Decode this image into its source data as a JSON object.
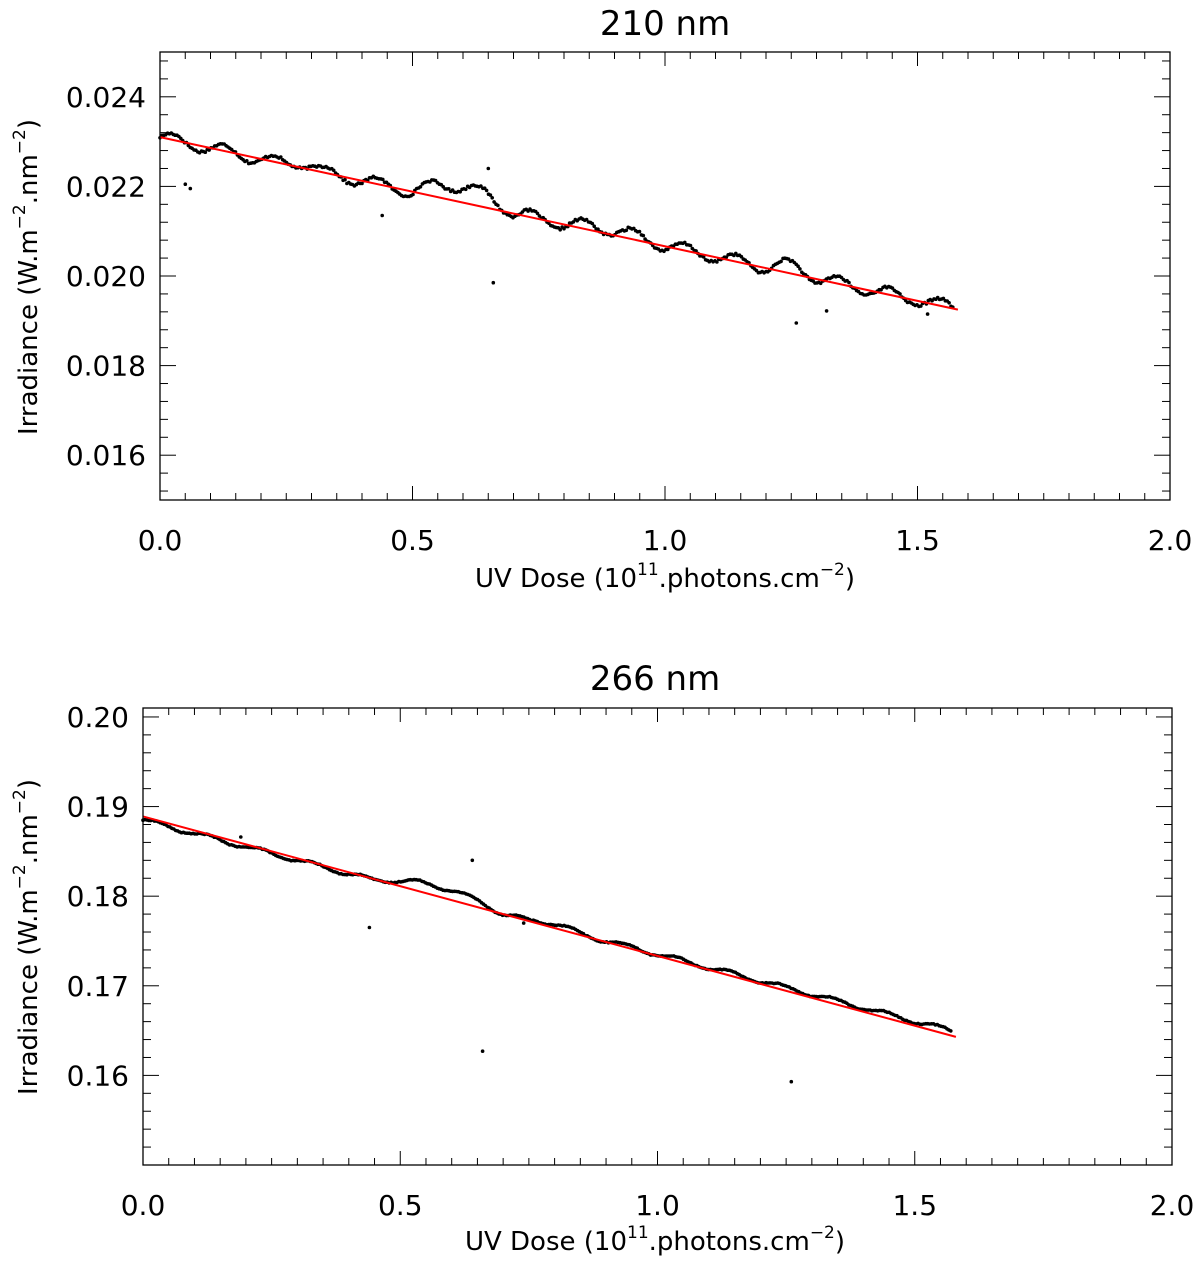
{
  "chart_data": [
    {
      "type": "scatter",
      "title": "210 nm",
      "xlabel": {
        "pre": "UV Dose (10",
        "sup1": "11",
        "mid": ".photons.cm",
        "sup2": "−2",
        "post": ")"
      },
      "ylabel": {
        "pre": "Irradiance (W.m",
        "sup1": "−2",
        "mid": ".nm",
        "sup2": "−2",
        "post": ")"
      },
      "xlim": [
        0.0,
        2.0
      ],
      "ylim": [
        0.015,
        0.025
      ],
      "xticks": [
        0.0,
        0.5,
        1.0,
        1.5,
        2.0
      ],
      "xtick_labels": [
        "0.0",
        "0.5",
        "1.0",
        "1.5",
        "2.0"
      ],
      "yticks": [
        0.016,
        0.018,
        0.02,
        0.022,
        0.024
      ],
      "ytick_labels": [
        "0.016",
        "0.018",
        "0.020",
        "0.022",
        "0.024"
      ],
      "grid": false,
      "series": [
        {
          "kind": "points",
          "color": "#000000",
          "trend": {
            "x": [
              0.0,
              1.57
            ],
            "y": [
              0.0231,
              0.0193
            ]
          },
          "wiggle": 0.00014,
          "bumps": [
            [
              0.25,
              0.32,
              0.00012
            ],
            [
              0.5,
              0.7,
              0.00035
            ],
            [
              0.8,
              1.0,
              0.0001
            ],
            [
              1.2,
              1.3,
              0.00015
            ]
          ],
          "outliers": [
            [
              0.05,
              0.02205
            ],
            [
              0.06,
              0.02195
            ],
            [
              0.44,
              0.02135
            ],
            [
              0.65,
              0.0224
            ],
            [
              0.66,
              0.01985
            ],
            [
              1.26,
              0.01895
            ],
            [
              1.32,
              0.01922
            ],
            [
              1.52,
              0.01915
            ]
          ]
        },
        {
          "kind": "line",
          "color": "#ff0000",
          "x": [
            0.0,
            1.58
          ],
          "y": [
            0.0231,
            0.01925
          ]
        }
      ]
    },
    {
      "type": "scatter",
      "title": "266 nm",
      "xlabel": {
        "pre": "UV Dose (10",
        "sup1": "11",
        "mid": ".photons.cm",
        "sup2": "−2",
        "post": ")"
      },
      "ylabel": {
        "pre": "Irradiance (W.m",
        "sup1": "−2",
        "mid": ".nm",
        "sup2": "−2",
        "post": ")"
      },
      "xlim": [
        0.0,
        2.0
      ],
      "ylim": [
        0.15,
        0.201
      ],
      "xticks": [
        0.0,
        0.5,
        1.0,
        1.5,
        2.0
      ],
      "xtick_labels": [
        "0.0",
        "0.5",
        "1.0",
        "1.5",
        "2.0"
      ],
      "yticks": [
        0.16,
        0.17,
        0.18,
        0.19,
        0.2
      ],
      "ytick_labels": [
        "0.16",
        "0.17",
        "0.18",
        "0.19",
        "0.20"
      ],
      "grid": false,
      "series": [
        {
          "kind": "points",
          "color": "#000000",
          "trend": {
            "x": [
              0.0,
              1.57
            ],
            "y": [
              0.1885,
              0.165
            ]
          },
          "wiggle": 0.00025,
          "bumps": [
            [
              0.45,
              0.7,
              0.0012
            ],
            [
              0.75,
              0.85,
              0.0004
            ]
          ],
          "outliers": [
            [
              0.19,
              0.1866
            ],
            [
              0.44,
              0.1765
            ],
            [
              0.64,
              0.184
            ],
            [
              0.66,
              0.1627
            ],
            [
              0.74,
              0.177
            ],
            [
              1.26,
              0.1593
            ]
          ]
        },
        {
          "kind": "line",
          "color": "#ff0000",
          "x": [
            0.0,
            1.58
          ],
          "y": [
            0.1889,
            0.1643
          ]
        }
      ]
    }
  ]
}
